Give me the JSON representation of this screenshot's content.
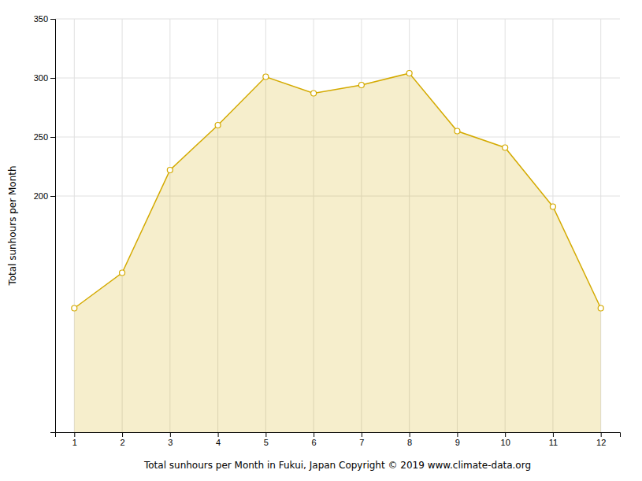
{
  "chart_data": {
    "type": "area",
    "xlabel": "Total sunhours per Month in Fukui, Japan Copyright © 2019 www.climate-data.org",
    "ylabel": "Total sunhours per Month",
    "x": [
      1,
      2,
      3,
      4,
      5,
      6,
      7,
      8,
      9,
      10,
      11,
      12
    ],
    "values": [
      105,
      135,
      222,
      260,
      301,
      287,
      294,
      304,
      255,
      241,
      191,
      105
    ],
    "color": "#D4AA00",
    "marker": "circle",
    "xlim": [
      0.6,
      12.4
    ],
    "xticks": [
      1,
      2,
      3,
      4,
      5,
      6,
      7,
      8,
      9,
      10,
      11,
      12
    ],
    "ylim": [
      0,
      350
    ],
    "yticks": [
      200,
      250,
      300,
      350
    ],
    "grid": true
  }
}
